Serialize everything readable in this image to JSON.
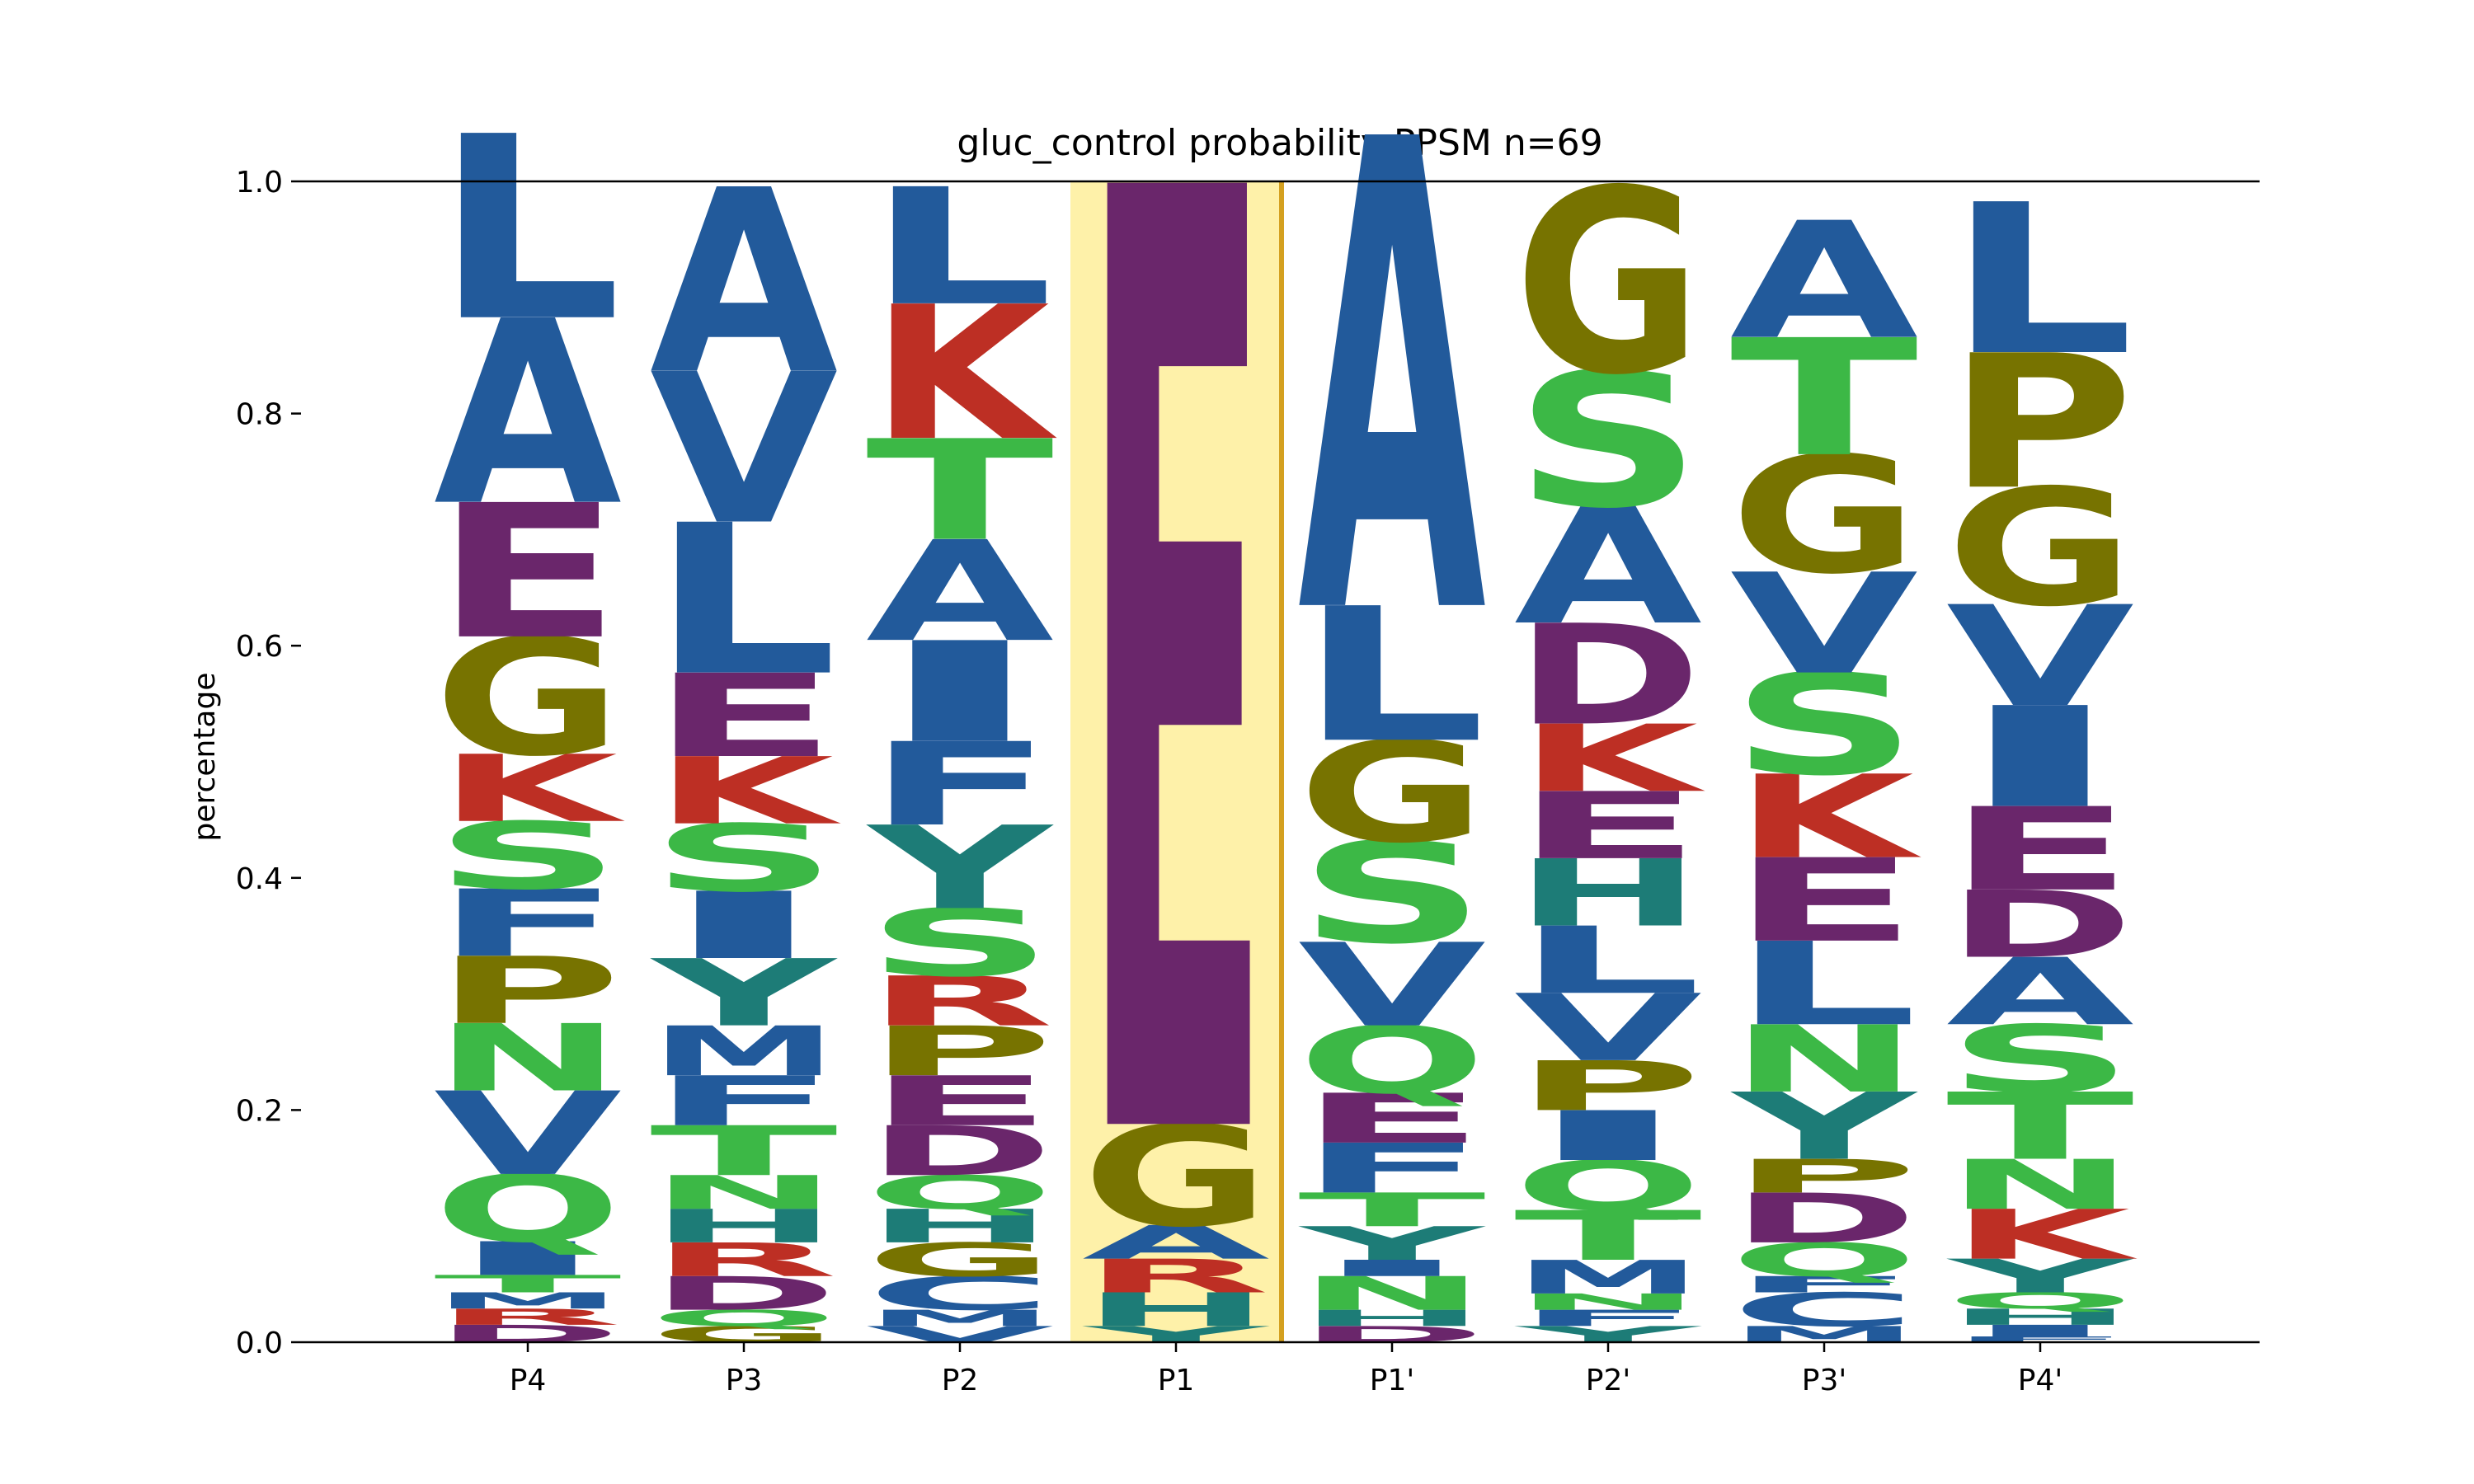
{
  "chart_data": {
    "type": "sequence-logo",
    "title": "gluc_control probability PPSM n=69",
    "ylabel": "percentage",
    "ylim": [
      0,
      1.0
    ],
    "yticks": [
      "0.0",
      "0.2",
      "0.4",
      "0.6",
      "0.8",
      "1.0"
    ],
    "positions": [
      "P4",
      "P3",
      "P2",
      "P1",
      "P1'",
      "P2'",
      "P3'",
      "P4'"
    ],
    "highlight_position": "P1",
    "colors": {
      "hydrophobic": "#225a9b",
      "acidic": "#6a266b",
      "basic": "#bd2f24",
      "polar": "#3cb846",
      "special": "#777300",
      "amide_aromatic": "#1d7c77",
      "highlight_fill": "#fef1a9",
      "highlight_border": "#d4a020"
    },
    "residue_colors": {
      "A": "#225a9b",
      "V": "#225a9b",
      "L": "#225a9b",
      "I": "#225a9b",
      "M": "#225a9b",
      "F": "#225a9b",
      "W": "#225a9b",
      "C": "#225a9b",
      "E": "#6a266b",
      "D": "#6a266b",
      "K": "#bd2f24",
      "R": "#bd2f24",
      "S": "#3cb846",
      "T": "#3cb846",
      "N": "#3cb846",
      "Q": "#3cb846",
      "G": "#777300",
      "P": "#777300",
      "H": "#1d7c77",
      "Y": "#1d7c77"
    },
    "stacks": [
      {
        "position": "P4",
        "residues": [
          {
            "aa": "D",
            "value": 0.015
          },
          {
            "aa": "R",
            "value": 0.014
          },
          {
            "aa": "M",
            "value": 0.014
          },
          {
            "aa": "T",
            "value": 0.015
          },
          {
            "aa": "I",
            "value": 0.029
          },
          {
            "aa": "Q",
            "value": 0.058
          },
          {
            "aa": "V",
            "value": 0.072
          },
          {
            "aa": "N",
            "value": 0.058
          },
          {
            "aa": "P",
            "value": 0.058
          },
          {
            "aa": "F",
            "value": 0.058
          },
          {
            "aa": "S",
            "value": 0.058
          },
          {
            "aa": "K",
            "value": 0.058
          },
          {
            "aa": "G",
            "value": 0.101
          },
          {
            "aa": "E",
            "value": 0.116
          },
          {
            "aa": "A",
            "value": 0.159
          },
          {
            "aa": "L",
            "value": 0.159
          }
        ]
      },
      {
        "position": "P3",
        "residues": [
          {
            "aa": "G",
            "value": 0.014
          },
          {
            "aa": "Q",
            "value": 0.014
          },
          {
            "aa": "D",
            "value": 0.029
          },
          {
            "aa": "R",
            "value": 0.029
          },
          {
            "aa": "H",
            "value": 0.029
          },
          {
            "aa": "N",
            "value": 0.029
          },
          {
            "aa": "T",
            "value": 0.043
          },
          {
            "aa": "F",
            "value": 0.043
          },
          {
            "aa": "M",
            "value": 0.043
          },
          {
            "aa": "Y",
            "value": 0.058
          },
          {
            "aa": "I",
            "value": 0.058
          },
          {
            "aa": "S",
            "value": 0.058
          },
          {
            "aa": "K",
            "value": 0.058
          },
          {
            "aa": "E",
            "value": 0.072
          },
          {
            "aa": "L",
            "value": 0.13
          },
          {
            "aa": "V",
            "value": 0.13
          },
          {
            "aa": "A",
            "value": 0.159
          }
        ]
      },
      {
        "position": "P2",
        "residues": [
          {
            "aa": "V",
            "value": 0.014
          },
          {
            "aa": "M",
            "value": 0.014
          },
          {
            "aa": "C",
            "value": 0.029
          },
          {
            "aa": "G",
            "value": 0.029
          },
          {
            "aa": "H",
            "value": 0.029
          },
          {
            "aa": "Q",
            "value": 0.029
          },
          {
            "aa": "D",
            "value": 0.043
          },
          {
            "aa": "E",
            "value": 0.043
          },
          {
            "aa": "P",
            "value": 0.043
          },
          {
            "aa": "R",
            "value": 0.043
          },
          {
            "aa": "S",
            "value": 0.058
          },
          {
            "aa": "Y",
            "value": 0.072
          },
          {
            "aa": "F",
            "value": 0.072
          },
          {
            "aa": "I",
            "value": 0.087
          },
          {
            "aa": "A",
            "value": 0.087
          },
          {
            "aa": "T",
            "value": 0.087
          },
          {
            "aa": "K",
            "value": 0.116
          },
          {
            "aa": "L",
            "value": 0.101
          }
        ]
      },
      {
        "position": "P1",
        "residues": [
          {
            "aa": "Y",
            "value": 0.014
          },
          {
            "aa": "H",
            "value": 0.029
          },
          {
            "aa": "R",
            "value": 0.029
          },
          {
            "aa": "A",
            "value": 0.029
          },
          {
            "aa": "G",
            "value": 0.087
          },
          {
            "aa": "E",
            "value": 0.812
          }
        ]
      },
      {
        "position": "P1'",
        "residues": [
          {
            "aa": "D",
            "value": 0.014
          },
          {
            "aa": "H",
            "value": 0.014
          },
          {
            "aa": "N",
            "value": 0.029
          },
          {
            "aa": "I",
            "value": 0.014
          },
          {
            "aa": "Y",
            "value": 0.029
          },
          {
            "aa": "T",
            "value": 0.029
          },
          {
            "aa": "F",
            "value": 0.043
          },
          {
            "aa": "E",
            "value": 0.043
          },
          {
            "aa": "Q",
            "value": 0.058
          },
          {
            "aa": "V",
            "value": 0.072
          },
          {
            "aa": "S",
            "value": 0.087
          },
          {
            "aa": "G",
            "value": 0.087
          },
          {
            "aa": "L",
            "value": 0.116
          },
          {
            "aa": "A",
            "value": 0.406
          }
        ]
      },
      {
        "position": "P2'",
        "residues": [
          {
            "aa": "Y",
            "value": 0.014
          },
          {
            "aa": "F",
            "value": 0.014
          },
          {
            "aa": "N",
            "value": 0.014
          },
          {
            "aa": "M",
            "value": 0.029
          },
          {
            "aa": "T",
            "value": 0.043
          },
          {
            "aa": "Q",
            "value": 0.043
          },
          {
            "aa": "I",
            "value": 0.043
          },
          {
            "aa": "P",
            "value": 0.043
          },
          {
            "aa": "V",
            "value": 0.058
          },
          {
            "aa": "L",
            "value": 0.058
          },
          {
            "aa": "H",
            "value": 0.058
          },
          {
            "aa": "E",
            "value": 0.058
          },
          {
            "aa": "K",
            "value": 0.058
          },
          {
            "aa": "D",
            "value": 0.087
          },
          {
            "aa": "A",
            "value": 0.101
          },
          {
            "aa": "S",
            "value": 0.116
          },
          {
            "aa": "G",
            "value": 0.159
          }
        ]
      },
      {
        "position": "P3'",
        "residues": [
          {
            "aa": "M",
            "value": 0.014
          },
          {
            "aa": "C",
            "value": 0.029
          },
          {
            "aa": "F",
            "value": 0.014
          },
          {
            "aa": "Q",
            "value": 0.029
          },
          {
            "aa": "D",
            "value": 0.043
          },
          {
            "aa": "P",
            "value": 0.029
          },
          {
            "aa": "Y",
            "value": 0.058
          },
          {
            "aa": "N",
            "value": 0.058
          },
          {
            "aa": "L",
            "value": 0.072
          },
          {
            "aa": "E",
            "value": 0.072
          },
          {
            "aa": "K",
            "value": 0.072
          },
          {
            "aa": "S",
            "value": 0.087
          },
          {
            "aa": "V",
            "value": 0.087
          },
          {
            "aa": "G",
            "value": 0.101
          },
          {
            "aa": "T",
            "value": 0.101
          },
          {
            "aa": "A",
            "value": 0.101
          }
        ]
      },
      {
        "position": "P4'",
        "residues": [
          {
            "aa": "F",
            "value": 0.005
          },
          {
            "aa": "I",
            "value": 0.01
          },
          {
            "aa": "H",
            "value": 0.014
          },
          {
            "aa": "Q",
            "value": 0.014
          },
          {
            "aa": "Y",
            "value": 0.029
          },
          {
            "aa": "K",
            "value": 0.043
          },
          {
            "aa": "N",
            "value": 0.043
          },
          {
            "aa": "T",
            "value": 0.058
          },
          {
            "aa": "S",
            "value": 0.058
          },
          {
            "aa": "A",
            "value": 0.058
          },
          {
            "aa": "D",
            "value": 0.058
          },
          {
            "aa": "E",
            "value": 0.072
          },
          {
            "aa": "I",
            "value": 0.087
          },
          {
            "aa": "V",
            "value": 0.087
          },
          {
            "aa": "G",
            "value": 0.101
          },
          {
            "aa": "P",
            "value": 0.116
          },
          {
            "aa": "L",
            "value": 0.13
          }
        ]
      }
    ]
  }
}
